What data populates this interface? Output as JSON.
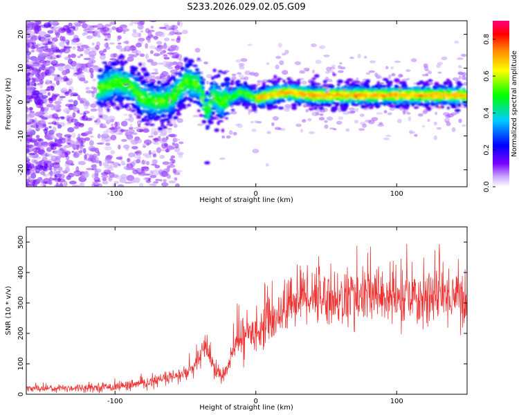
{
  "title": "S233.2026.029.02.05.G09",
  "chart_data": [
    {
      "type": "heatmap",
      "xlabel": "Height of straight line (km)",
      "ylabel": "Frequency (Hz)",
      "xlim": [
        -163,
        150
      ],
      "ylim": [
        -25,
        24
      ],
      "xticks": [
        -100,
        0,
        100
      ],
      "yticks": [
        -20,
        -10,
        0,
        10,
        20
      ],
      "grid": false,
      "colorbar": {
        "label": "Normalized spectral amplitude",
        "range": [
          0.0,
          0.9
        ],
        "ticks": [
          "0.0",
          "0.2",
          "0.4",
          "0.6",
          "0.8"
        ],
        "colors": [
          "#ffffff",
          "#7a00ff",
          "#0000ff",
          "#00ccff",
          "#00ff00",
          "#ffff00",
          "#ff8800",
          "#ff0000",
          "#ff0080"
        ]
      },
      "ridge": {
        "description_points_x": [
          -110,
          -100,
          -90,
          -80,
          -70,
          -60,
          -50,
          -40,
          -35,
          -30,
          -25,
          -20,
          -10,
          0,
          20,
          40,
          60,
          80,
          100,
          120,
          150
        ],
        "description_points_y": [
          4,
          6,
          5,
          1,
          0,
          1,
          6,
          5,
          -3,
          2,
          0,
          1,
          3,
          1,
          3,
          2,
          2,
          2,
          2,
          2,
          2
        ],
        "peak_amplitude": 0.85
      }
    },
    {
      "type": "line",
      "xlabel": "Height of straight line (km)",
      "ylabel": "SNR (10 * v/v)",
      "xlim": [
        -163,
        150
      ],
      "ylim": [
        0,
        550
      ],
      "xticks": [
        -100,
        0,
        100
      ],
      "yticks": [
        0,
        100,
        200,
        300,
        400,
        500
      ],
      "color": "#ee3333",
      "grid": false,
      "series": [
        {
          "x": [
            -163,
            -140,
            -120,
            -100,
            -80,
            -65,
            -55,
            -45,
            -40,
            -35,
            -30,
            -25,
            -20,
            -15,
            -10,
            -5,
            0,
            10,
            20,
            30,
            40,
            50,
            60,
            70,
            80,
            90,
            100,
            110,
            120,
            130,
            140,
            150
          ],
          "values": [
            20,
            20,
            22,
            25,
            35,
            50,
            60,
            80,
            120,
            160,
            90,
            60,
            80,
            160,
            190,
            200,
            210,
            240,
            280,
            320,
            330,
            320,
            310,
            320,
            320,
            330,
            310,
            310,
            320,
            320,
            330,
            310
          ]
        }
      ]
    }
  ]
}
